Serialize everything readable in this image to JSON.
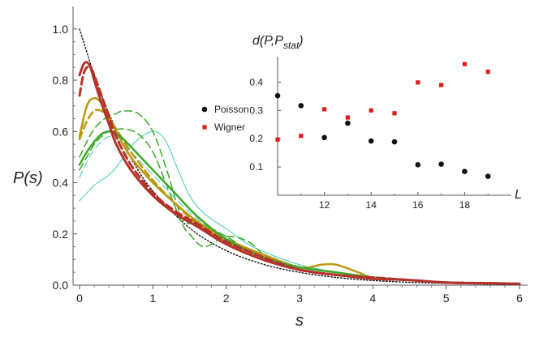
{
  "chart_data": [
    {
      "type": "line",
      "xlabel": "s",
      "ylabel": "P(s)",
      "xlim": [
        0,
        6
      ],
      "ylim": [
        0,
        1.05
      ],
      "xticks": [
        0,
        1,
        2,
        3,
        4,
        5,
        6
      ],
      "yticks": [
        0.0,
        0.2,
        0.4,
        0.6,
        0.8,
        1.0
      ],
      "ytick_labels": [
        "0.0",
        "0.2",
        "0.4",
        "0.6",
        "0.8",
        "1.0"
      ],
      "grid": false,
      "series": [
        {
          "color": "#b5322a",
          "style": "solid",
          "weight": 3,
          "x": [
            0.0,
            0.05,
            0.1,
            0.15,
            0.2,
            0.3,
            0.4,
            0.5,
            0.7,
            1.0,
            1.3,
            1.6,
            2.0,
            2.5,
            3.0,
            3.5,
            4.0,
            4.5,
            5.0,
            5.5,
            6.0
          ],
          "y": [
            0.82,
            0.86,
            0.87,
            0.85,
            0.8,
            0.71,
            0.63,
            0.55,
            0.45,
            0.35,
            0.28,
            0.23,
            0.16,
            0.1,
            0.06,
            0.04,
            0.025,
            0.02,
            0.01,
            0.008,
            0.005
          ]
        },
        {
          "color": "#b5322a",
          "style": "dashed",
          "weight": 3,
          "x": [
            0.0,
            0.05,
            0.1,
            0.15,
            0.2,
            0.3,
            0.4,
            0.5,
            0.7,
            1.0,
            1.3,
            1.6,
            2.0,
            2.5,
            3.0,
            3.5,
            4.0,
            4.5,
            5.0,
            5.5,
            6.0
          ],
          "y": [
            0.74,
            0.82,
            0.85,
            0.85,
            0.82,
            0.74,
            0.66,
            0.58,
            0.47,
            0.36,
            0.29,
            0.24,
            0.17,
            0.11,
            0.06,
            0.04,
            0.03,
            0.02,
            0.01,
            0.008,
            0.005
          ]
        },
        {
          "color": "#b8980f",
          "style": "solid",
          "weight": 2.5,
          "x": [
            0.0,
            0.1,
            0.2,
            0.3,
            0.4,
            0.5,
            0.7,
            1.0,
            1.3,
            1.6,
            2.0,
            2.5,
            3.0,
            3.3,
            3.5,
            3.8,
            4.0,
            4.5,
            5.0,
            5.5,
            6.0
          ],
          "y": [
            0.58,
            0.7,
            0.73,
            0.71,
            0.66,
            0.6,
            0.5,
            0.4,
            0.32,
            0.25,
            0.18,
            0.12,
            0.07,
            0.08,
            0.08,
            0.05,
            0.03,
            0.02,
            0.01,
            0.008,
            0.005
          ]
        },
        {
          "color": "#b8980f",
          "style": "dashed",
          "weight": 2.5,
          "x": [
            0.0,
            0.1,
            0.2,
            0.3,
            0.4,
            0.5,
            0.7,
            1.0,
            1.3,
            1.6,
            2.0,
            2.5,
            3.0,
            3.5,
            4.0,
            4.5,
            5.0,
            5.5,
            6.0
          ],
          "y": [
            0.57,
            0.64,
            0.68,
            0.68,
            0.65,
            0.61,
            0.52,
            0.41,
            0.32,
            0.24,
            0.17,
            0.11,
            0.07,
            0.05,
            0.03,
            0.02,
            0.01,
            0.008,
            0.005
          ]
        },
        {
          "color": "#3aa828",
          "style": "solid",
          "weight": 2.5,
          "x": [
            0.0,
            0.1,
            0.2,
            0.3,
            0.4,
            0.5,
            0.6,
            0.8,
            1.0,
            1.3,
            1.6,
            2.0,
            2.5,
            3.0,
            3.5,
            4.0,
            4.5,
            5.0,
            5.5,
            6.0
          ],
          "y": [
            0.47,
            0.52,
            0.56,
            0.59,
            0.6,
            0.59,
            0.57,
            0.51,
            0.45,
            0.36,
            0.27,
            0.18,
            0.11,
            0.07,
            0.05,
            0.03,
            0.02,
            0.01,
            0.008,
            0.005
          ]
        },
        {
          "color": "#3aa828",
          "style": "dashed",
          "weight": 1.5,
          "x": [
            0.0,
            0.1,
            0.2,
            0.3,
            0.4,
            0.5,
            0.6,
            0.8,
            1.0,
            1.2,
            1.4,
            1.6,
            1.8,
            2.0,
            2.3,
            2.6,
            3.0,
            3.5,
            4.0,
            4.5,
            5.0,
            5.5,
            6.0
          ],
          "y": [
            0.5,
            0.56,
            0.61,
            0.64,
            0.66,
            0.67,
            0.68,
            0.67,
            0.6,
            0.44,
            0.26,
            0.24,
            0.22,
            0.19,
            0.14,
            0.11,
            0.07,
            0.05,
            0.03,
            0.02,
            0.01,
            0.008,
            0.005
          ]
        },
        {
          "color": "#3aa828",
          "style": "dashed",
          "weight": 1.5,
          "x": [
            0.0,
            0.1,
            0.2,
            0.3,
            0.4,
            0.6,
            0.8,
            1.0,
            1.2,
            1.4,
            1.5,
            1.7,
            2.0,
            2.3,
            2.6,
            3.0,
            3.5,
            4.0,
            4.5,
            5.0,
            5.5,
            6.0
          ],
          "y": [
            0.45,
            0.5,
            0.55,
            0.58,
            0.6,
            0.61,
            0.59,
            0.52,
            0.38,
            0.24,
            0.2,
            0.15,
            0.19,
            0.17,
            0.1,
            0.07,
            0.05,
            0.03,
            0.02,
            0.01,
            0.008,
            0.005
          ]
        },
        {
          "color": "#3ec9b0",
          "style": "solid",
          "weight": 1,
          "x": [
            0.0,
            0.1,
            0.2,
            0.3,
            0.4,
            0.5,
            0.6,
            0.7,
            0.8,
            0.9,
            1.0,
            1.1,
            1.2,
            1.3,
            1.5,
            1.7,
            2.0,
            2.3,
            2.6,
            3.0,
            3.5,
            4.0,
            4.5,
            5.0,
            5.5,
            6.0
          ],
          "y": [
            0.33,
            0.36,
            0.39,
            0.41,
            0.43,
            0.46,
            0.5,
            0.54,
            0.57,
            0.59,
            0.6,
            0.59,
            0.55,
            0.48,
            0.35,
            0.28,
            0.22,
            0.16,
            0.12,
            0.08,
            0.05,
            0.03,
            0.02,
            0.01,
            0.008,
            0.005
          ]
        },
        {
          "color": "#3ec9b0",
          "style": "dashed",
          "weight": 1,
          "x": [
            0.0,
            0.1,
            0.2,
            0.3,
            0.4,
            0.5,
            0.7,
            1.0,
            1.3,
            1.6,
            2.0,
            2.5,
            3.0,
            3.5,
            4.0,
            4.5,
            5.0,
            5.5,
            6.0
          ],
          "y": [
            0.42,
            0.48,
            0.53,
            0.56,
            0.58,
            0.57,
            0.52,
            0.43,
            0.34,
            0.26,
            0.18,
            0.11,
            0.07,
            0.05,
            0.03,
            0.02,
            0.01,
            0.008,
            0.005
          ]
        },
        {
          "color": "#111111",
          "style": "dotted",
          "weight": 1.4,
          "x": [
            0.0,
            0.25,
            0.5,
            0.75,
            1.0,
            1.5,
            2.0,
            2.5,
            3.0,
            3.5,
            4.0,
            4.5,
            5.0,
            5.5,
            6.0
          ],
          "y": [
            1.0,
            0.779,
            0.607,
            0.472,
            0.368,
            0.223,
            0.135,
            0.082,
            0.05,
            0.03,
            0.018,
            0.011,
            0.007,
            0.004,
            0.002
          ]
        }
      ]
    },
    {
      "type": "scatter",
      "ylabel": "d(P,P",
      "ylabel_sub": "stat",
      "ylabel_close": ")",
      "xlabel": "L",
      "xlim": [
        10,
        20
      ],
      "ylim": [
        0.0,
        0.47
      ],
      "xticks": [
        12,
        14,
        16,
        18
      ],
      "yticks": [
        0.1,
        0.2,
        0.3,
        0.4
      ],
      "legend": "right",
      "series": [
        {
          "name": "Poisson",
          "color": "#111111",
          "marker": "circle",
          "x": [
            10,
            11,
            12,
            13,
            14,
            15,
            16,
            17,
            18,
            19
          ],
          "y": [
            0.352,
            0.317,
            0.204,
            0.255,
            0.192,
            0.189,
            0.108,
            0.11,
            0.084,
            0.067
          ]
        },
        {
          "name": "Wigner",
          "color": "#dd1c1c",
          "marker": "square",
          "x": [
            10,
            11,
            12,
            13,
            14,
            15,
            16,
            17,
            18,
            19
          ],
          "y": [
            0.197,
            0.21,
            0.304,
            0.275,
            0.3,
            0.29,
            0.399,
            0.39,
            0.464,
            0.437
          ]
        }
      ]
    }
  ]
}
